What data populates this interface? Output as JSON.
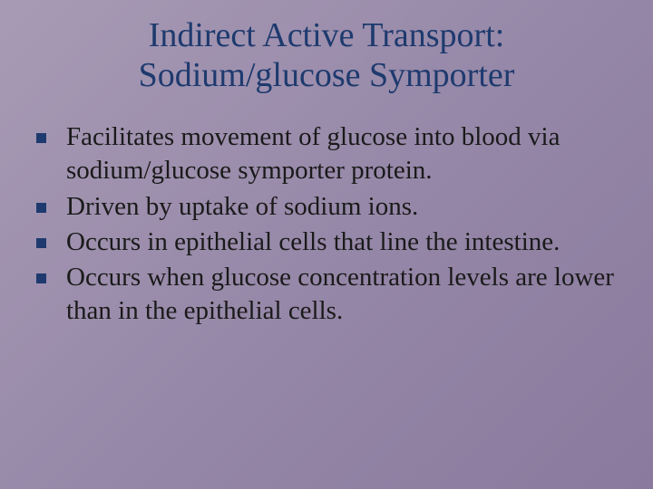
{
  "slide": {
    "title": "Indirect Active Transport: Sodium/glucose Symporter",
    "bullets": [
      "Facilitates movement of glucose into blood via sodium/glucose symporter protein.",
      "Driven by uptake of sodium ions.",
      "Occurs in epithelial cells that line the intestine.",
      "Occurs when glucose concentration levels are lower than in the epithelial cells."
    ]
  },
  "style": {
    "background_gradient": [
      "#a89bb5",
      "#9688a8",
      "#8a7a9e"
    ],
    "title_color": "#1e3a6e",
    "title_fontsize": 38,
    "body_color": "#1a1a1a",
    "body_fontsize": 29,
    "bullet_marker_color": "#1e3a6e",
    "bullet_marker_size": 11,
    "font_family": "Georgia, Times New Roman, serif"
  }
}
